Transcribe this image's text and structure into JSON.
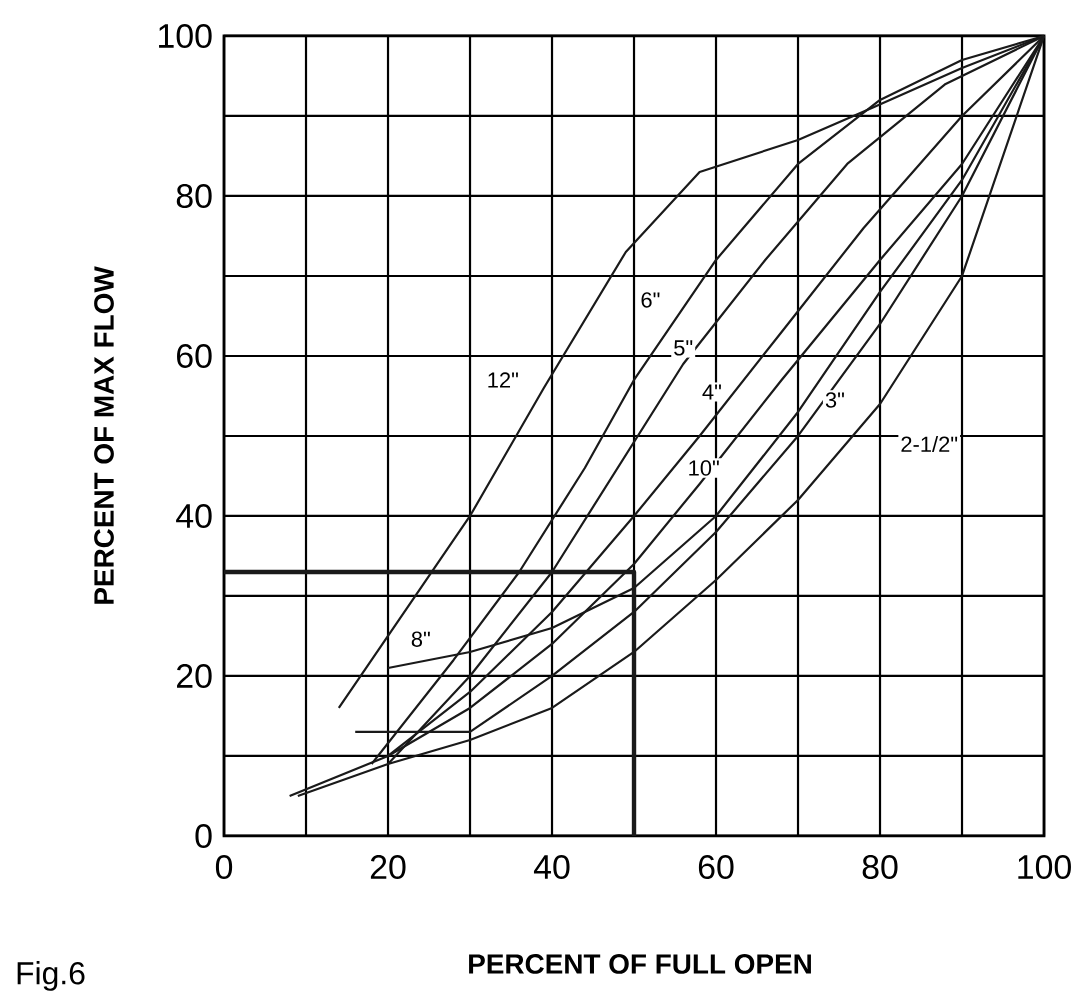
{
  "chart_data": {
    "type": "line",
    "xlabel": "PERCENT OF FULL OPEN",
    "ylabel": "PERCENT OF MAX FLOW",
    "annotations": [
      "Fig.6"
    ],
    "xlim": [
      0,
      100
    ],
    "ylim": [
      0,
      100
    ],
    "xticks": [
      0,
      {
        "value": 10,
        "label": null
      },
      20,
      {
        "value": 30,
        "label": null
      },
      40,
      {
        "value": 50,
        "label": null
      },
      60,
      {
        "value": 70,
        "label": null
      },
      80,
      {
        "value": 90,
        "label": null
      },
      100
    ],
    "yticks": [
      0,
      {
        "value": 10,
        "label": null
      },
      20,
      {
        "value": 30,
        "label": null
      },
      40,
      {
        "value": 50,
        "label": null
      },
      60,
      {
        "value": 70,
        "label": null
      },
      80,
      {
        "value": 90,
        "label": null
      },
      100
    ],
    "grid": true,
    "line_style": "solid",
    "series": [
      {
        "name": "12\"",
        "color": "#1a1a1a",
        "x": [
          14,
          22,
          30,
          39,
          49,
          58,
          70,
          79,
          90,
          100
        ],
        "values": [
          16,
          28,
          40,
          56,
          73,
          83,
          87,
          91,
          96,
          100
        ]
      },
      {
        "name": "6\"",
        "color": "#1a1a1a",
        "x": [
          18,
          28,
          36,
          44,
          50,
          60,
          70,
          80,
          90,
          100
        ],
        "values": [
          9,
          22,
          33,
          46,
          57,
          72,
          84,
          92,
          97,
          100
        ]
      },
      {
        "name": "5\"",
        "color": "#1a1a1a",
        "x": [
          20,
          30,
          40,
          48,
          56,
          66,
          76,
          88,
          100
        ],
        "values": [
          9,
          20,
          33,
          46,
          59,
          72,
          84,
          94,
          100
        ]
      },
      {
        "name": "4\"",
        "color": "#1a1a1a",
        "x": [
          20,
          30,
          40,
          50,
          58,
          68,
          78,
          90,
          100
        ],
        "values": [
          10,
          18,
          28,
          40,
          50,
          63,
          76,
          90,
          100
        ]
      },
      {
        "name": "10\"",
        "color": "#1a1a1a",
        "x": [
          8,
          20,
          30,
          40,
          50,
          58,
          68,
          80,
          90,
          100
        ],
        "values": [
          5,
          10,
          16,
          24,
          34,
          44,
          57,
          72,
          84,
          100
        ]
      },
      {
        "name": "3\"",
        "color": "#1a1a1a",
        "x": [
          16,
          30,
          40,
          50,
          60,
          70,
          80,
          90,
          100
        ],
        "values": [
          13,
          13,
          20,
          28,
          38,
          50,
          64,
          80,
          100
        ]
      },
      {
        "name": "2-1/2\"",
        "color": "#1a1a1a",
        "x": [
          9,
          20,
          30,
          40,
          50,
          60,
          70,
          80,
          90,
          100
        ],
        "values": [
          5,
          9,
          12,
          16,
          23,
          32,
          42,
          54,
          70,
          100
        ]
      },
      {
        "name": "8\"",
        "color": "#1a1a1a",
        "x": [
          20,
          30,
          40,
          50,
          60,
          70,
          80,
          90,
          100
        ],
        "values": [
          21,
          23,
          26,
          31,
          40,
          53,
          68,
          82,
          100
        ]
      },
      {
        "color": "#1a1a1a",
        "x": [
          0,
          50,
          50
        ],
        "values": [
          33,
          33,
          0
        ]
      }
    ]
  }
}
